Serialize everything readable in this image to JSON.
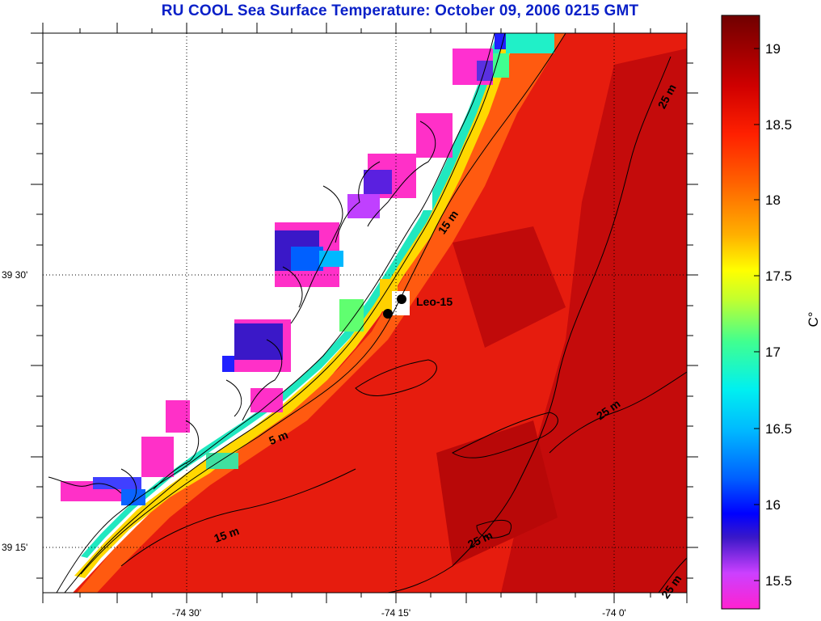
{
  "title": "RU COOL  Sea Surface Temperature:  October 09, 2006 0215 GMT",
  "axes": {
    "lat_ticks": [
      {
        "label": "39 30'"
      },
      {
        "label": "39 15'"
      }
    ],
    "lon_ticks": [
      {
        "label": "-74 30'"
      },
      {
        "label": "-74 15'"
      },
      {
        "label": "-74 0'"
      }
    ]
  },
  "station": {
    "label": "Leo-15"
  },
  "depth_labels": [
    "25 m",
    "15 m",
    "5 m",
    "25 m",
    "15 m",
    "25 m",
    "25 m"
  ],
  "colorbar": {
    "unit": "C°",
    "ticks": [
      "19",
      "18.5",
      "18",
      "17.5",
      "17",
      "16.5",
      "16",
      "15.5"
    ],
    "min": 15.3,
    "max": 19.2,
    "colors": [
      "#ff22c8",
      "#c840ff",
      "#5a30e0",
      "#0018ff",
      "#0a64ff",
      "#00b4ff",
      "#00f0f0",
      "#40ff90",
      "#c0ff30",
      "#ffff00",
      "#ffc000",
      "#ff8000",
      "#ff4000",
      "#f01010",
      "#c80000",
      "#800000"
    ]
  }
}
